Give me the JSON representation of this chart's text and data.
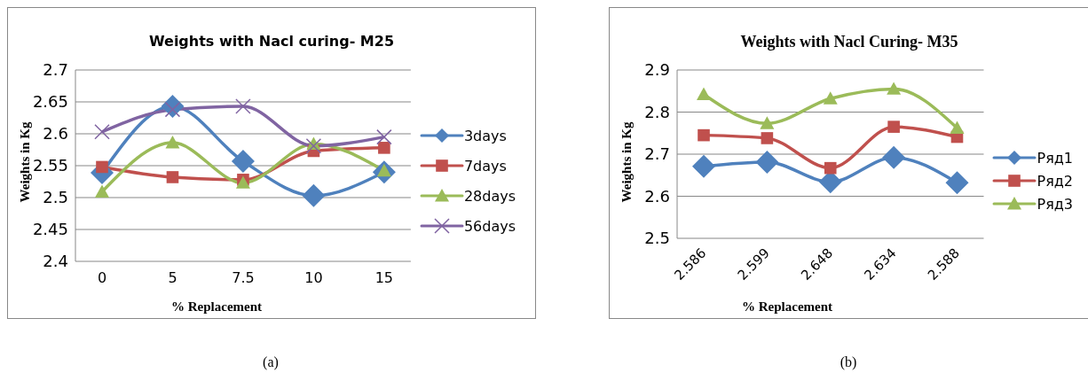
{
  "chart_data": [
    {
      "type": "line",
      "title": "Weights with Nacl curing- M25",
      "xlabel": "% Replacement",
      "ylabel": "Weights in Kg",
      "categories": [
        "0",
        "5",
        "7.5",
        "10",
        "15"
      ],
      "series": [
        {
          "name": "3days",
          "color": "#4f81bd",
          "marker": "diamond",
          "values": [
            2.539,
            2.643,
            2.557,
            2.503,
            2.54
          ]
        },
        {
          "name": "7days",
          "color": "#c0504d",
          "marker": "square",
          "values": [
            2.548,
            2.532,
            2.528,
            2.573,
            2.578
          ]
        },
        {
          "name": "28days",
          "color": "#9bbb59",
          "marker": "triangle",
          "values": [
            2.509,
            2.586,
            2.523,
            2.584,
            2.542
          ]
        },
        {
          "name": "56days",
          "color": "#8064a2",
          "marker": "cross",
          "values": [
            2.603,
            2.638,
            2.643,
            2.581,
            2.595
          ]
        }
      ],
      "ylim": [
        2.4,
        2.7
      ],
      "yticks": [
        2.4,
        2.45,
        2.5,
        2.55,
        2.6,
        2.65,
        2.7
      ],
      "grid": "y",
      "legend": "right",
      "line_style": "solid",
      "annotations": [
        "(a)"
      ]
    },
    {
      "type": "line",
      "title": "Weights with Nacl Curing- M35",
      "xlabel": "% Replacement",
      "ylabel": "Weights in Kg",
      "categories": [
        "2.586",
        "2.599",
        "2.648",
        "2.634",
        "2.588"
      ],
      "series": [
        {
          "name": "Ряд1",
          "color": "#4f81bd",
          "marker": "diamond",
          "values": [
            2.671,
            2.681,
            2.634,
            2.692,
            2.632
          ]
        },
        {
          "name": "Ряд2",
          "color": "#c0504d",
          "marker": "square",
          "values": [
            2.745,
            2.738,
            2.667,
            2.765,
            2.741
          ]
        },
        {
          "name": "Ряд3",
          "color": "#9bbb59",
          "marker": "triangle",
          "values": [
            2.842,
            2.773,
            2.832,
            2.855,
            2.762
          ]
        }
      ],
      "ylim": [
        2.5,
        2.9
      ],
      "yticks": [
        2.5,
        2.6,
        2.7,
        2.8,
        2.9
      ],
      "grid": "y",
      "legend": "right",
      "line_style": "solid",
      "annotations": [
        "(b)"
      ]
    }
  ]
}
